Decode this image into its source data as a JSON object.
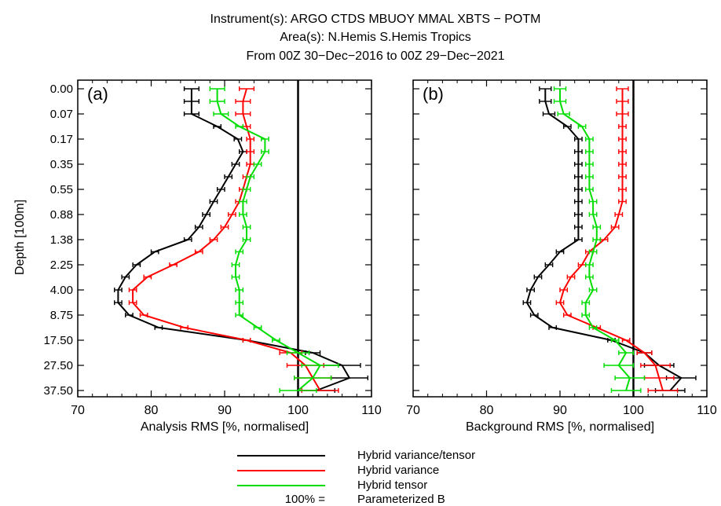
{
  "title_lines": [
    "Instrument(s): ARGO CTDS MBUOY MMAL XBTS − POTM",
    "Area(s): N.Hemis S.Hemis Tropics",
    "From 00Z 30−Dec−2016 to 00Z 29−Dec−2021"
  ],
  "legend": [
    {
      "label": "Hybrid variance/tensor",
      "color": "#000000"
    },
    {
      "label": "Hybrid variance",
      "color": "#ff0000"
    },
    {
      "label": "Hybrid tensor",
      "color": "#00dd00"
    }
  ],
  "legend_reference": {
    "prefix": "100% =",
    "label": "Parameterized B"
  },
  "chart_data": [
    {
      "type": "line",
      "panel_label": "(a)",
      "xlabel": "Analysis RMS [%, normalised]",
      "ylabel": "Depth [100m]",
      "xlim": [
        70,
        110
      ],
      "xticks": [
        70,
        80,
        90,
        100,
        110
      ],
      "reference_line_x": 100,
      "y_ticks": [
        "0.00",
        "0.07",
        "0.17",
        "0.35",
        "0.55",
        "0.88",
        "1.38",
        "2.25",
        "4.00",
        "8.75",
        "17.50",
        "27.50",
        "37.50"
      ],
      "y_orientation": "depth increasing downward",
      "series": [
        {
          "name": "Hybrid variance/tensor",
          "color": "#000000",
          "y": [
            0.0,
            0.035,
            0.07,
            0.12,
            0.17,
            0.26,
            0.35,
            0.45,
            0.55,
            0.71,
            0.88,
            1.13,
            1.38,
            1.8,
            2.25,
            3.1,
            4.0,
            6.4,
            8.75,
            13.1,
            17.5,
            22.5,
            27.5,
            32.5,
            37.5
          ],
          "values": [
            85.5,
            85.5,
            85.5,
            89,
            91.8,
            92.5,
            91.5,
            90.5,
            89.5,
            88.5,
            87.5,
            86.5,
            85,
            80.5,
            78,
            76.5,
            75.5,
            75.5,
            77,
            81,
            93,
            102,
            106,
            107,
            102.5
          ],
          "errors": [
            1.0,
            1.0,
            1.0,
            0.5,
            0.5,
            0.5,
            0.5,
            0.5,
            0.5,
            0.5,
            0.5,
            0.5,
            0.5,
            0.5,
            0.5,
            0.5,
            0.5,
            0.5,
            0.5,
            0.5,
            0.5,
            1.0,
            2.5,
            2.5,
            2.5
          ]
        },
        {
          "name": "Hybrid variance",
          "color": "#ff0000",
          "y": [
            0.0,
            0.035,
            0.07,
            0.12,
            0.17,
            0.26,
            0.35,
            0.45,
            0.55,
            0.71,
            0.88,
            1.13,
            1.38,
            1.8,
            2.25,
            3.1,
            4.0,
            6.4,
            8.75,
            13.1,
            17.5,
            22.5,
            27.5,
            32.5,
            37.5
          ],
          "values": [
            93,
            92.5,
            92.5,
            93,
            93.5,
            93.5,
            93.5,
            93,
            92.5,
            92,
            91,
            90,
            88.5,
            86.5,
            83,
            79.5,
            77.5,
            77.5,
            79,
            84.5,
            93,
            99,
            101,
            102,
            103
          ],
          "errors": [
            1.0,
            1.0,
            1.0,
            0.5,
            0.5,
            0.5,
            0.5,
            0.5,
            0.5,
            0.5,
            0.5,
            0.5,
            0.5,
            0.5,
            0.5,
            0.5,
            0.5,
            0.5,
            0.5,
            0.5,
            0.5,
            1.5,
            2.5,
            2.5,
            2.5
          ]
        },
        {
          "name": "Hybrid tensor",
          "color": "#00dd00",
          "y": [
            0.0,
            0.035,
            0.07,
            0.12,
            0.17,
            0.26,
            0.35,
            0.45,
            0.55,
            0.71,
            0.88,
            1.13,
            1.38,
            1.8,
            2.25,
            3.1,
            4.0,
            6.4,
            8.75,
            13.1,
            17.5,
            22.5,
            27.5,
            32.5,
            37.5
          ],
          "values": [
            89,
            89,
            89.5,
            92,
            95.5,
            95.5,
            94.5,
            93.5,
            93,
            92.5,
            92.5,
            93,
            93,
            92,
            91.5,
            91.5,
            92,
            92,
            92,
            94.5,
            97,
            100,
            103,
            102,
            100
          ],
          "errors": [
            1.0,
            1.0,
            1.0,
            0.5,
            0.5,
            0.5,
            0.5,
            0.5,
            0.5,
            0.5,
            0.5,
            0.5,
            0.5,
            0.5,
            0.5,
            0.5,
            0.5,
            0.5,
            0.5,
            0.5,
            0.5,
            1.5,
            2.5,
            2.5,
            2.5
          ]
        }
      ]
    },
    {
      "type": "line",
      "panel_label": "(b)",
      "xlabel": "Background RMS [%, normalised]",
      "ylabel": "",
      "xlim": [
        70,
        110
      ],
      "xticks": [
        70,
        80,
        90,
        100,
        110
      ],
      "reference_line_x": 100,
      "y_ticks": [
        "0.00",
        "0.07",
        "0.17",
        "0.35",
        "0.55",
        "0.88",
        "1.38",
        "2.25",
        "4.00",
        "8.75",
        "17.50",
        "27.50",
        "37.50"
      ],
      "y_orientation": "depth increasing downward",
      "series": [
        {
          "name": "Hybrid variance/tensor",
          "color": "#000000",
          "y": [
            0.0,
            0.035,
            0.07,
            0.12,
            0.17,
            0.26,
            0.35,
            0.45,
            0.55,
            0.71,
            0.88,
            1.13,
            1.38,
            1.8,
            2.25,
            3.1,
            4.0,
            6.4,
            8.75,
            13.1,
            17.5,
            22.5,
            27.5,
            32.5,
            37.5
          ],
          "values": [
            88,
            88,
            88.5,
            91,
            92.5,
            92.5,
            92.5,
            92.5,
            92.5,
            92.5,
            92.5,
            92.5,
            92.5,
            90,
            88.5,
            87,
            86,
            85.5,
            86.5,
            89,
            97,
            101.5,
            103.5,
            106.5,
            105
          ],
          "errors": [
            0.8,
            0.8,
            0.8,
            0.5,
            0.5,
            0.5,
            0.5,
            0.5,
            0.5,
            0.5,
            0.5,
            0.5,
            0.5,
            0.5,
            0.5,
            0.5,
            0.5,
            0.5,
            0.5,
            0.5,
            0.5,
            1.0,
            2.0,
            2.0,
            2.0
          ]
        },
        {
          "name": "Hybrid variance",
          "color": "#ff0000",
          "y": [
            0.0,
            0.035,
            0.07,
            0.12,
            0.17,
            0.26,
            0.35,
            0.45,
            0.55,
            0.71,
            0.88,
            1.13,
            1.38,
            1.8,
            2.25,
            3.1,
            4.0,
            6.4,
            8.75,
            13.1,
            17.5,
            22.5,
            27.5,
            32.5,
            37.5
          ],
          "values": [
            98.5,
            98.5,
            98.5,
            98.5,
            98.5,
            98.5,
            98.5,
            98.5,
            98.5,
            98.5,
            98,
            97.5,
            96,
            94,
            93,
            91.5,
            90.5,
            90,
            91,
            95,
            99,
            101.5,
            103,
            103.5,
            104
          ],
          "errors": [
            0.8,
            0.8,
            0.8,
            0.5,
            0.5,
            0.5,
            0.5,
            0.5,
            0.5,
            0.5,
            0.5,
            0.5,
            0.5,
            0.5,
            0.5,
            0.5,
            0.5,
            0.5,
            0.5,
            0.5,
            0.5,
            1.0,
            2.0,
            2.0,
            2.0
          ]
        },
        {
          "name": "Hybrid tensor",
          "color": "#00dd00",
          "y": [
            0.0,
            0.035,
            0.07,
            0.12,
            0.17,
            0.26,
            0.35,
            0.45,
            0.55,
            0.71,
            0.88,
            1.13,
            1.38,
            1.8,
            2.25,
            3.1,
            4.0,
            6.4,
            8.75,
            13.1,
            17.5,
            22.5,
            27.5,
            32.5,
            37.5
          ],
          "values": [
            90,
            90,
            90.5,
            93,
            94,
            94,
            94,
            94,
            94,
            94.5,
            94.5,
            95,
            95,
            94.5,
            94,
            94,
            94.5,
            93.5,
            93.5,
            94.5,
            97.5,
            99,
            98,
            99.5,
            99
          ],
          "errors": [
            0.8,
            0.8,
            0.8,
            0.5,
            0.5,
            0.5,
            0.5,
            0.5,
            0.5,
            0.5,
            0.5,
            0.5,
            0.5,
            0.5,
            0.5,
            0.5,
            0.5,
            0.5,
            0.5,
            0.5,
            0.5,
            1.0,
            2.0,
            2.0,
            2.0
          ]
        }
      ]
    }
  ]
}
